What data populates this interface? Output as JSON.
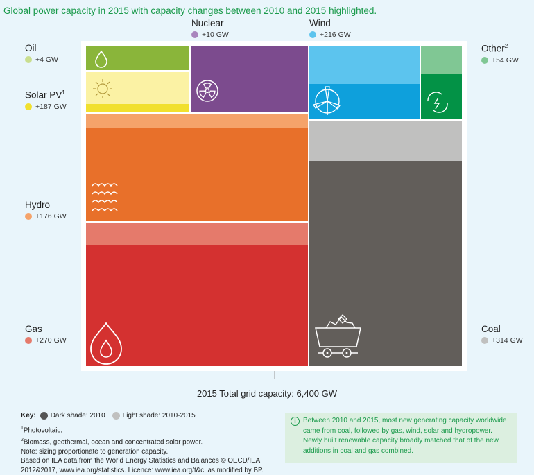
{
  "title": "Global power capacity in 2015 with capacity changes between 2010 and 2015 highlighted.",
  "labels": {
    "oil": {
      "name": "Oil",
      "sup": "",
      "value": "+4 GW"
    },
    "solar": {
      "name": "Solar PV",
      "sup": "1",
      "value": "+187 GW"
    },
    "hydro": {
      "name": "Hydro",
      "sup": "",
      "value": "+176 GW"
    },
    "gas": {
      "name": "Gas",
      "sup": "",
      "value": "+270 GW"
    },
    "nuclear": {
      "name": "Nuclear",
      "sup": "",
      "value": "+10 GW"
    },
    "wind": {
      "name": "Wind",
      "sup": "",
      "value": "+216 GW"
    },
    "other": {
      "name": "Other",
      "sup": "2",
      "value": "+54 GW"
    },
    "coal": {
      "name": "Coal",
      "sup": "",
      "value": "+314 GW"
    }
  },
  "total_label": "2015 Total grid capacity: 6,400 GW",
  "key": {
    "label": "Key:",
    "dark": "Dark shade: 2010",
    "light": "Light shade: 2010-2015"
  },
  "notes": {
    "n1": "Photovoltaic.",
    "n2": "Biomass, geothermal, ocean and concentrated solar power.",
    "n3": "Note: sizing proportionate to generation capacity.",
    "n4": "Based on IEA data from the World Energy Statistics and Balances © OECD/IEA",
    "n5": "2012&2017, www.iea.org/statistics. Licence: www.iea.org/t&c; as modified by BP."
  },
  "callout": {
    "icon": "i",
    "l1": "Between 2010 and 2015, most new generating capacity worldwide",
    "l2": "came from coal, followed by gas, wind, solar and hydropower.",
    "l3": "Newly built renewable capacity broadly matched that of the new",
    "l4": "additions in coal and gas combined."
  },
  "chart_data": {
    "type": "treemap",
    "title": "Global power capacity in 2015 with capacity changes between 2010 and 2015 highlighted.",
    "total": {
      "label": "2015 Total grid capacity",
      "value": 6400,
      "unit": "GW"
    },
    "series": [
      {
        "name": "Oil",
        "change_2010_2015": 4,
        "unit": "GW",
        "dark": "#8ab53a",
        "light": "#c9de8e",
        "icon": "oil-drop-icon"
      },
      {
        "name": "Solar PV",
        "change_2010_2015": 187,
        "unit": "GW",
        "dark": "#f1e02e",
        "light": "#fbf2a4",
        "icon": "sun-icon"
      },
      {
        "name": "Hydro",
        "change_2010_2015": 176,
        "unit": "GW",
        "dark": "#e8702a",
        "light": "#f5a36a",
        "icon": "waves-icon"
      },
      {
        "name": "Gas",
        "change_2010_2015": 270,
        "unit": "GW",
        "dark": "#d43130",
        "light": "#e57a6b",
        "icon": "flame-icon"
      },
      {
        "name": "Nuclear",
        "change_2010_2015": 10,
        "unit": "GW",
        "dark": "#7c4b8e",
        "light": "#a985bd",
        "icon": "radiation-icon"
      },
      {
        "name": "Wind",
        "change_2010_2015": 216,
        "unit": "GW",
        "dark": "#0ea0dc",
        "light": "#5cc4ee",
        "icon": "wind-turbine-icon"
      },
      {
        "name": "Other",
        "change_2010_2015": 54,
        "unit": "GW",
        "dark": "#039246",
        "light": "#80c794",
        "icon": "recycle-icon"
      },
      {
        "name": "Coal",
        "change_2010_2015": 314,
        "unit": "GW",
        "dark": "#625e5a",
        "light": "#c0c0bf",
        "icon": "coal-cart-icon"
      }
    ]
  }
}
